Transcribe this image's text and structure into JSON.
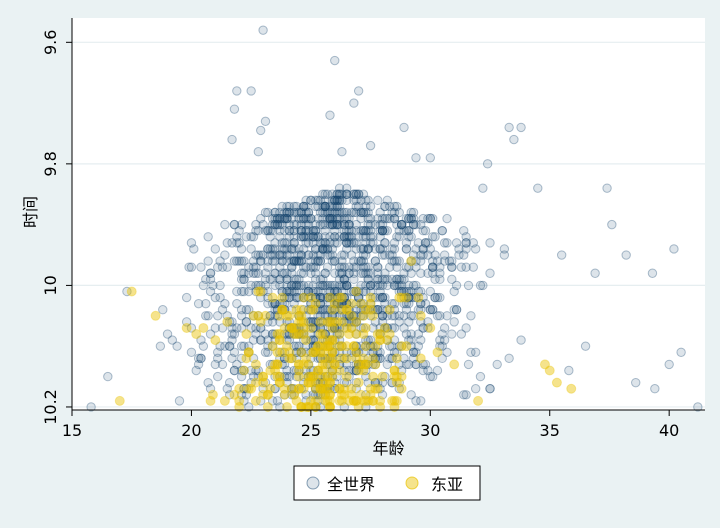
{
  "chart_data": {
    "type": "scatter",
    "title": "",
    "xlabel": "年龄",
    "ylabel": "时间",
    "xlim": [
      15,
      41.5
    ],
    "ylim": [
      9.56,
      10.205
    ],
    "y_inverted": true,
    "x_ticks": [
      15,
      20,
      25,
      30,
      35,
      40
    ],
    "y_ticks": [
      9.6,
      9.8,
      10,
      10.2
    ],
    "x_tick_labels": [
      "15",
      "20",
      "25",
      "30",
      "35",
      "40"
    ],
    "y_tick_labels": [
      "9.6",
      "9.8",
      "10",
      "10.2"
    ],
    "grid": "horizontal",
    "legend_position": "bottom",
    "series": [
      {
        "name": "全世界",
        "color": "#1a476f",
        "fill_opacity": 0.15,
        "marker": "circle-hollow",
        "points": [
          [
            23.0,
            9.58
          ],
          [
            26.0,
            9.63
          ],
          [
            21.9,
            9.68
          ],
          [
            22.5,
            9.68
          ],
          [
            27.0,
            9.68
          ],
          [
            21.8,
            9.71
          ],
          [
            25.8,
            9.72
          ],
          [
            26.8,
            9.7
          ],
          [
            23.1,
            9.73
          ],
          [
            22.9,
            9.745
          ],
          [
            27.5,
            9.77
          ],
          [
            21.7,
            9.76
          ],
          [
            28.9,
            9.74
          ],
          [
            33.3,
            9.74
          ],
          [
            33.5,
            9.76
          ],
          [
            33.8,
            9.74
          ],
          [
            22.8,
            9.78
          ],
          [
            26.3,
            9.78
          ],
          [
            29.4,
            9.79
          ],
          [
            30.0,
            9.79
          ],
          [
            32.4,
            9.8
          ],
          [
            32.2,
            9.84
          ],
          [
            34.5,
            9.84
          ],
          [
            37.4,
            9.84
          ],
          [
            38.2,
            9.95
          ],
          [
            40.2,
            9.94
          ],
          [
            39.3,
            9.98
          ],
          [
            36.9,
            9.98
          ],
          [
            37.6,
            9.9
          ],
          [
            35.5,
            9.95
          ],
          [
            17.3,
            10.01
          ],
          [
            16.5,
            10.15
          ],
          [
            15.8,
            10.2
          ],
          [
            41.2,
            10.2
          ],
          [
            40.5,
            10.11
          ],
          [
            40.0,
            10.13
          ],
          [
            39.4,
            10.17
          ],
          [
            38.6,
            10.16
          ],
          [
            36.5,
            10.1
          ],
          [
            35.8,
            10.14
          ]
        ]
      },
      {
        "name": "东亚",
        "color": "#e8c200",
        "fill_opacity": 0.45,
        "marker": "circle",
        "points": [
          [
            17.5,
            10.01
          ],
          [
            17.0,
            10.19
          ],
          [
            18.5,
            10.05
          ],
          [
            20.5,
            10.07
          ],
          [
            20.2,
            10.08
          ],
          [
            19.8,
            10.07
          ],
          [
            21.0,
            10.09
          ],
          [
            22.3,
            10.12
          ],
          [
            23.0,
            10.15
          ],
          [
            23.5,
            10.13
          ],
          [
            24.0,
            10.1
          ],
          [
            24.8,
            10.09
          ],
          [
            25.5,
            10.11
          ],
          [
            26.0,
            10.13
          ],
          [
            26.5,
            10.15
          ],
          [
            27.2,
            10.12
          ],
          [
            27.9,
            10.08
          ],
          [
            28.5,
            10.14
          ],
          [
            29.0,
            10.1
          ],
          [
            29.6,
            10.12
          ],
          [
            30.0,
            10.07
          ],
          [
            28.8,
            10.02
          ],
          [
            29.2,
            9.96
          ],
          [
            30.3,
            10.11
          ],
          [
            31.0,
            10.13
          ],
          [
            32.0,
            10.19
          ],
          [
            21.5,
            10.06
          ],
          [
            22.0,
            10.17
          ],
          [
            24.5,
            10.17
          ],
          [
            25.0,
            10.19
          ],
          [
            27.5,
            10.18
          ],
          [
            35.0,
            10.14
          ],
          [
            35.3,
            10.16
          ],
          [
            34.8,
            10.13
          ],
          [
            35.9,
            10.17
          ],
          [
            20.8,
            10.19
          ],
          [
            22.6,
            10.05
          ],
          [
            23.8,
            10.04
          ],
          [
            25.2,
            10.03
          ],
          [
            26.9,
            10.06
          ]
        ]
      }
    ]
  }
}
